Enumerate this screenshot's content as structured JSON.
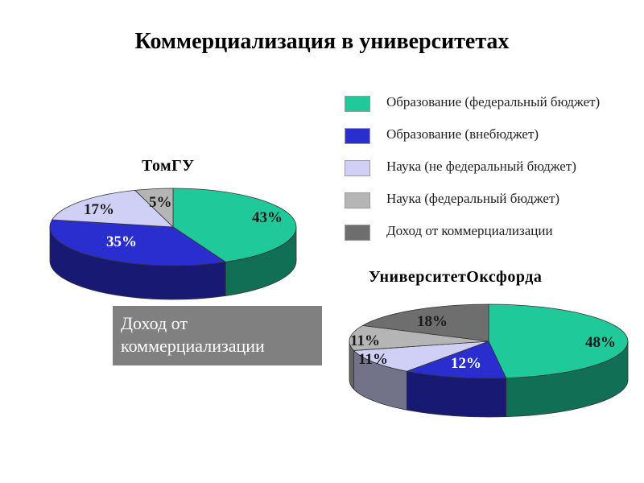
{
  "title": "Коммерциализация в университетах",
  "legend": {
    "items": [
      {
        "label": "Образование (федеральный бюджет)",
        "color": "#1fc99a"
      },
      {
        "label": "Образование (внебюджет)",
        "color": "#2a2ecf"
      },
      {
        "label": "Наука (не федеральный бюджет)",
        "color": "#d0d0f7"
      },
      {
        "label": "Наука (федеральный бюджет)",
        "color": "#b5b5b5"
      },
      {
        "label": "Доход от коммерциализации",
        "color": "#6e6e6e"
      }
    ]
  },
  "callout": {
    "text": "Доход от коммерциализации"
  },
  "chart_data": [
    {
      "type": "pie",
      "title": "ТомГУ",
      "categories": [
        "Образование (федеральный бюджет)",
        "Образование (внебюджет)",
        "Наука (не федеральный бюджет)",
        "Наука (федеральный бюджет)"
      ],
      "values": [
        43,
        35,
        17,
        5
      ],
      "labels": [
        "43%",
        "35%",
        "17%",
        "5%"
      ],
      "colors": [
        "#1fc99a",
        "#2a2ecf",
        "#d0d0f7",
        "#b5b5b5"
      ]
    },
    {
      "type": "pie",
      "title": "УниверситетОксфорда",
      "categories": [
        "Образование (федеральный бюджет)",
        "Образование (внебюджет)",
        "Наука (не федеральный бюджет)",
        "Наука (федеральный бюджет)",
        "Доход от коммерциализации"
      ],
      "values": [
        48,
        12,
        11,
        11,
        18
      ],
      "labels": [
        "48%",
        "12%",
        "11%",
        "11%",
        "18%"
      ],
      "colors": [
        "#1fc99a",
        "#2a2ecf",
        "#d0d0f7",
        "#b5b5b5",
        "#6e6e6e"
      ]
    }
  ]
}
